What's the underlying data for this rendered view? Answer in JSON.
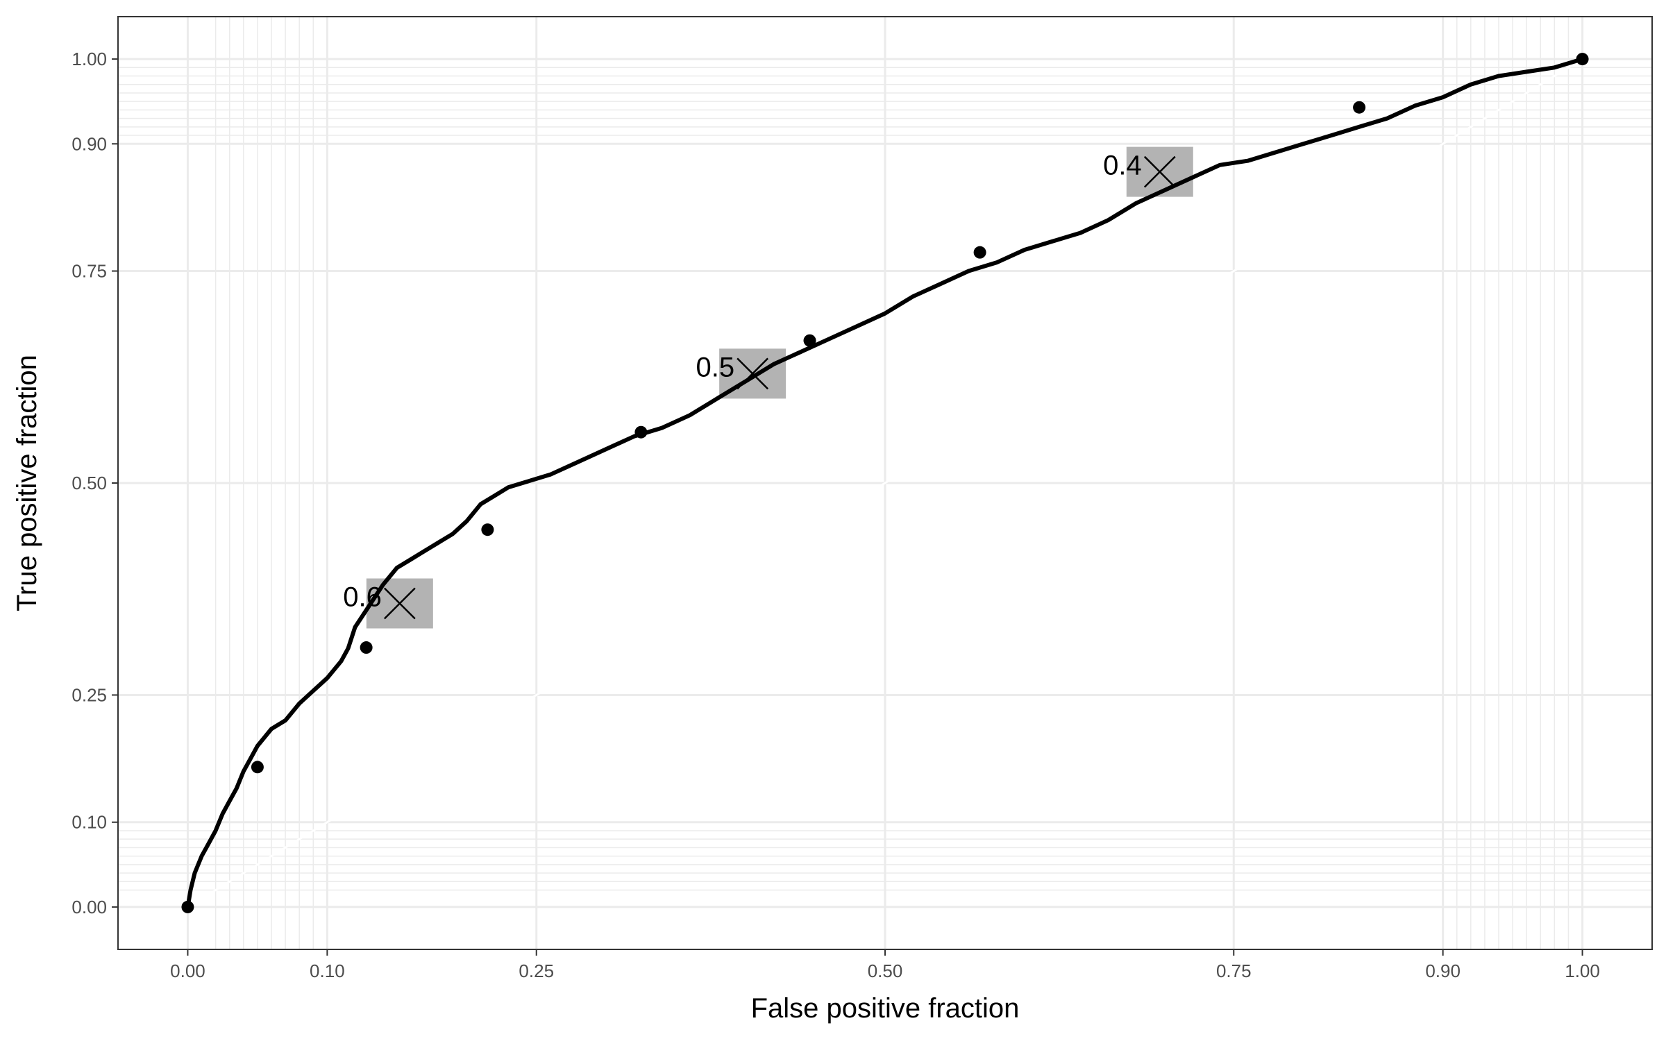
{
  "chart_data": {
    "type": "line",
    "title": "",
    "xlabel": "False positive fraction",
    "ylabel": "True positive fraction",
    "xlim": [
      -0.05,
      1.05
    ],
    "ylim": [
      -0.05,
      1.05
    ],
    "x_ticks": [
      "0.00",
      "0.10",
      "0.25",
      "0.50",
      "0.75",
      "0.90",
      "1.00"
    ],
    "y_ticks": [
      "0.00",
      "0.10",
      "0.25",
      "0.50",
      "0.75",
      "0.90",
      "1.00"
    ],
    "x_tick_values": [
      0,
      0.1,
      0.25,
      0.5,
      0.75,
      0.9,
      1.0
    ],
    "y_tick_values": [
      0,
      0.1,
      0.25,
      0.5,
      0.75,
      0.9,
      1.0
    ],
    "minor_grid_values": [
      0.02,
      0.03,
      0.04,
      0.05,
      0.06,
      0.07,
      0.08,
      0.09,
      0.91,
      0.92,
      0.93,
      0.94,
      0.95,
      0.96,
      0.97,
      0.98,
      0.99
    ],
    "grid": true,
    "series": [
      {
        "x": [
          0,
          0.002,
          0.005,
          0.01,
          0.015,
          0.02,
          0.025,
          0.03,
          0.035,
          0.04,
          0.045,
          0.05,
          0.055,
          0.06,
          0.065,
          0.07,
          0.08,
          0.09,
          0.1,
          0.11,
          0.115,
          0.12,
          0.13,
          0.14,
          0.15,
          0.16,
          0.17,
          0.18,
          0.19,
          0.2,
          0.21,
          0.22,
          0.23,
          0.24,
          0.25,
          0.26,
          0.28,
          0.3,
          0.32,
          0.34,
          0.36,
          0.38,
          0.4,
          0.42,
          0.44,
          0.46,
          0.48,
          0.5,
          0.52,
          0.54,
          0.56,
          0.58,
          0.6,
          0.62,
          0.64,
          0.66,
          0.68,
          0.7,
          0.72,
          0.74,
          0.76,
          0.78,
          0.8,
          0.82,
          0.84,
          0.86,
          0.88,
          0.9,
          0.92,
          0.94,
          0.96,
          0.98,
          1.0
        ],
        "y": [
          0,
          0.02,
          0.04,
          0.06,
          0.075,
          0.09,
          0.11,
          0.125,
          0.14,
          0.16,
          0.175,
          0.19,
          0.2,
          0.21,
          0.215,
          0.22,
          0.24,
          0.255,
          0.27,
          0.29,
          0.305,
          0.33,
          0.355,
          0.38,
          0.4,
          0.41,
          0.42,
          0.43,
          0.44,
          0.455,
          0.475,
          0.485,
          0.495,
          0.5,
          0.505,
          0.51,
          0.525,
          0.54,
          0.555,
          0.565,
          0.58,
          0.6,
          0.62,
          0.64,
          0.655,
          0.67,
          0.685,
          0.7,
          0.72,
          0.735,
          0.75,
          0.76,
          0.775,
          0.785,
          0.795,
          0.81,
          0.83,
          0.845,
          0.86,
          0.875,
          0.88,
          0.89,
          0.9,
          0.91,
          0.92,
          0.93,
          0.945,
          0.955,
          0.97,
          0.98,
          0.985,
          0.99,
          1.0
        ]
      }
    ],
    "points": [
      {
        "x": 0,
        "y": 0
      },
      {
        "x": 0.05,
        "y": 0.165
      },
      {
        "x": 0.128,
        "y": 0.306
      },
      {
        "x": 0.215,
        "y": 0.445
      },
      {
        "x": 0.325,
        "y": 0.56
      },
      {
        "x": 0.446,
        "y": 0.668
      },
      {
        "x": 0.568,
        "y": 0.772
      },
      {
        "x": 0.84,
        "y": 0.943
      },
      {
        "x": 1.0,
        "y": 1.0
      }
    ],
    "cutoffs": [
      {
        "label": "0.6",
        "x": 0.152,
        "y": 0.358
      },
      {
        "label": "0.5",
        "x": 0.405,
        "y": 0.629
      },
      {
        "label": "0.4",
        "x": 0.697,
        "y": 0.867
      }
    ]
  }
}
